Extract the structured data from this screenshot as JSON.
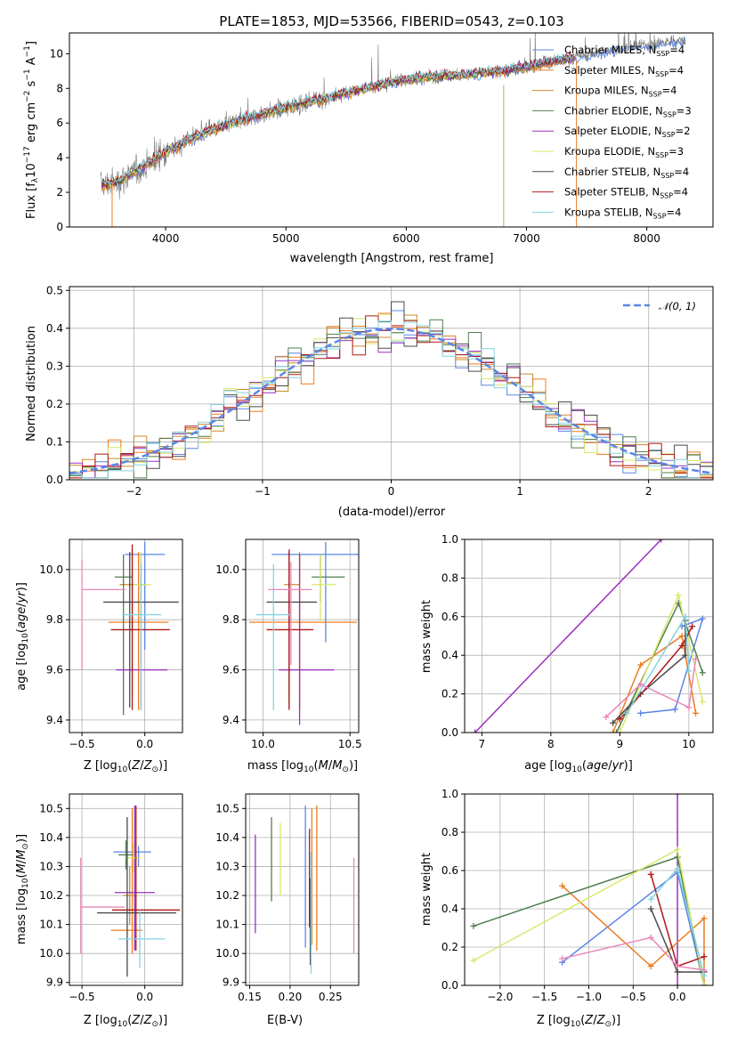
{
  "figure": {
    "title": "PLATE=1853, MJD=53566, FIBERID=0543, z=0.103"
  },
  "colors": {
    "series": [
      "#5b86e5",
      "#ec7c1e",
      "#cc8a2e",
      "#4f7f4f",
      "#9b30c0",
      "#d9e86a",
      "#4a4a4a",
      "#b01818",
      "#84d2e0"
    ],
    "spectrum": "#7a7a7a",
    "pink": "#e887b9",
    "gaussian": "#5b86e5"
  },
  "chart_data": [
    {
      "id": "spectrum",
      "type": "line",
      "xlabel": "wavelength [Angstrom, rest frame]",
      "ylabel": "Flux [f_λ10^-17 erg cm^-2 s^-1 A^-1]",
      "xlim": [
        3200,
        8550
      ],
      "ylim": [
        0,
        11.2
      ],
      "xticks": [
        4000,
        5000,
        6000,
        7000,
        8000
      ],
      "yticks": [
        0,
        2,
        4,
        6,
        8,
        10
      ],
      "legend_position": "right",
      "legend": [
        "Chabrier MILES, N_SSP=4",
        "Salpeter MILES, N_SSP=4",
        "Kroupa MILES, N_SSP=4",
        "Chabrier ELODIE, N_SSP=3",
        "Salpeter ELODIE, N_SSP=2",
        "Kroupa ELODIE, N_SSP=3",
        "Chabrier STELIB, N_SSP=4",
        "Salpeter STELIB, N_SSP=4",
        "Kroupa STELIB, N_SSP=4"
      ],
      "legend_base": [
        "Chabrier MILES, N",
        "Salpeter MILES, N",
        "Kroupa MILES, N",
        "Chabrier ELODIE, N",
        "Salpeter ELODIE, N",
        "Kroupa ELODIE, N",
        "Chabrier STELIB, N",
        "Salpeter STELIB, N",
        "Kroupa STELIB, N"
      ],
      "legend_n": [
        "=4",
        "=4",
        "=4",
        "=3",
        "=2",
        "=3",
        "=4",
        "=4",
        "=4"
      ],
      "legend_sub": "SSP",
      "model_continuum": {
        "x": [
          3450,
          3600,
          3700,
          3800,
          4000,
          4200,
          4500,
          4800,
          5000,
          5300,
          5600,
          5900,
          6200,
          6500,
          6800,
          7100,
          7400,
          7700,
          8000,
          8300
        ],
        "y": [
          2.4,
          2.6,
          3.0,
          3.4,
          4.3,
          5.1,
          5.9,
          6.5,
          6.9,
          7.4,
          7.9,
          8.4,
          8.7,
          8.8,
          9.0,
          9.4,
          9.8,
          10.2,
          10.5,
          10.8
        ]
      }
    },
    {
      "id": "residuals",
      "type": "bar",
      "xlabel": "(data-model)/error",
      "ylabel": "Normed distribution",
      "xlim": [
        -2.5,
        2.5
      ],
      "ylim": [
        0,
        0.51
      ],
      "xticks": [
        -2,
        -1,
        0,
        1,
        2
      ],
      "yticks": [
        0.0,
        0.1,
        0.2,
        0.3,
        0.4,
        0.5
      ],
      "grid": true,
      "legend_position": "top-right",
      "legend": [
        "𝒩(0, 1)"
      ],
      "bins": 50,
      "bin_range": [
        -2.5,
        2.5
      ]
    },
    {
      "id": "age_Z",
      "type": "scatter",
      "xlabel": "Z [log10(Z/Z⊙)]",
      "ylabel": "age  [log10(age/yr)]",
      "xlim": [
        -0.6,
        0.3
      ],
      "ylim": [
        9.35,
        10.12
      ],
      "xticks": [
        -0.5,
        0.0
      ],
      "yticks": [
        9.4,
        9.6,
        9.8,
        10.0
      ],
      "grid": true,
      "points": [
        {
          "x": 0.0,
          "y": 10.06,
          "xerr": [
            0.16,
            0.16
          ],
          "yerr": [
            0.38,
            0.05
          ]
        },
        {
          "x": -0.05,
          "y": 9.79,
          "xerr": [
            0.24,
            0.24
          ],
          "yerr": [
            0.35,
            0.28
          ]
        },
        {
          "x": -0.1,
          "y": 9.94,
          "xerr": [
            0.1,
            0.12
          ],
          "yerr": [
            0.45,
            0.14
          ]
        },
        {
          "x": -0.17,
          "y": 9.97,
          "xerr": [
            0.07,
            0.07
          ],
          "yerr": [
            0.55,
            0.09
          ]
        },
        {
          "x": -0.03,
          "y": 9.6,
          "xerr": [
            0.2,
            0.21
          ],
          "yerr": [
            0.16,
            0.46
          ]
        },
        {
          "x": -0.03,
          "y": 9.94,
          "xerr": [
            0.06,
            0.08
          ],
          "yerr": [
            0.22,
            0.13
          ]
        },
        {
          "x": -0.12,
          "y": 9.87,
          "xerr": [
            0.21,
            0.39
          ],
          "yerr": [
            0.42,
            0.2
          ]
        },
        {
          "x": -0.1,
          "y": 9.76,
          "xerr": [
            0.17,
            0.3
          ],
          "yerr": [
            0.32,
            0.34
          ]
        },
        {
          "x": -0.03,
          "y": 9.82,
          "xerr": [
            0.15,
            0.16
          ],
          "yerr": [
            0.38,
            0.2
          ]
        },
        {
          "x": -0.5,
          "y": 9.92,
          "xerr": [
            0.0,
            0.35
          ],
          "yerr": [
            0.32,
            0.12
          ]
        }
      ]
    },
    {
      "id": "age_mass",
      "type": "scatter",
      "xlabel": "mass [log10(M/M⊙)]",
      "ylabel": "",
      "xlim": [
        9.9,
        10.55
      ],
      "ylim": [
        9.35,
        10.12
      ],
      "xticks": [
        10.0,
        10.5
      ],
      "yticks": [
        9.4,
        9.6,
        9.8,
        10.0
      ],
      "grid": true,
      "points": [
        {
          "x": 10.36,
          "y": 10.06,
          "xerr": [
            0.31,
            0.2
          ],
          "yerr": [
            0.35,
            0.05
          ]
        },
        {
          "x": 10.21,
          "y": 9.79,
          "xerr": [
            0.29,
            0.33
          ],
          "yerr": [
            0.35,
            0.28
          ]
        },
        {
          "x": 10.15,
          "y": 9.94,
          "xerr": [
            0.03,
            0.06
          ],
          "yerr": [
            0.45,
            0.12
          ]
        },
        {
          "x": 10.33,
          "y": 9.97,
          "xerr": [
            0.05,
            0.14
          ],
          "yerr": [
            0.1,
            0.09
          ]
        },
        {
          "x": 10.21,
          "y": 9.6,
          "xerr": [
            0.12,
            0.2
          ],
          "yerr": [
            0.22,
            0.46
          ]
        },
        {
          "x": 10.33,
          "y": 9.94,
          "xerr": [
            0.05,
            0.09
          ],
          "yerr": [
            0.15,
            0.12
          ]
        },
        {
          "x": 10.15,
          "y": 9.87,
          "xerr": [
            0.13,
            0.16
          ],
          "yerr": [
            0.42,
            0.2
          ]
        },
        {
          "x": 10.15,
          "y": 9.76,
          "xerr": [
            0.13,
            0.14
          ],
          "yerr": [
            0.32,
            0.32
          ]
        },
        {
          "x": 10.06,
          "y": 9.82,
          "xerr": [
            0.1,
            0.1
          ],
          "yerr": [
            0.38,
            0.2
          ]
        },
        {
          "x": 10.16,
          "y": 9.92,
          "xerr": [
            0.13,
            0.12
          ],
          "yerr": [
            0.3,
            0.11
          ]
        }
      ]
    },
    {
      "id": "weight_age",
      "type": "line",
      "xlabel": "age  [log10(age/yr)]",
      "ylabel": "mass weight",
      "xlim": [
        6.75,
        10.35
      ],
      "ylim": [
        0,
        1.0
      ],
      "xticks": [
        7,
        8,
        9,
        10
      ],
      "yticks": [
        0.0,
        0.2,
        0.4,
        0.6,
        0.8,
        1.0
      ],
      "grid": true
    },
    {
      "id": "mass_Z",
      "type": "scatter",
      "xlabel": "Z [log10(Z/Z⊙)]",
      "ylabel": "mass [log10(M/M⊙)]",
      "xlim": [
        -0.6,
        0.3
      ],
      "ylim": [
        9.89,
        10.55
      ],
      "xticks": [
        -0.5,
        0.0
      ],
      "yticks": [
        9.9,
        10.0,
        10.1,
        10.2,
        10.3,
        10.4,
        10.5
      ],
      "grid": true,
      "points": [
        {
          "x": -0.05,
          "y": 10.35,
          "xerr": [
            0.2,
            0.1
          ],
          "yerr": [
            0.05,
            0.02
          ]
        },
        {
          "x": -0.1,
          "y": 10.08,
          "xerr": [
            0.17,
            0.08
          ],
          "yerr": [
            0.08,
            0.42
          ]
        },
        {
          "x": -0.12,
          "y": 10.2,
          "xerr": [
            0.05,
            0.04
          ],
          "yerr": [
            0.1,
            0.1
          ]
        },
        {
          "x": -0.15,
          "y": 10.34,
          "xerr": [
            0.06,
            0.06
          ],
          "yerr": [
            0.05,
            0.05
          ]
        },
        {
          "x": -0.08,
          "y": 10.21,
          "xerr": [
            0.16,
            0.16
          ],
          "yerr": [
            0.2,
            0.3
          ]
        },
        {
          "x": -0.09,
          "y": 10.33,
          "xerr": [
            0.06,
            0.06
          ],
          "yerr": [
            0.05,
            0.05
          ]
        },
        {
          "x": -0.14,
          "y": 10.14,
          "xerr": [
            0.24,
            0.39
          ],
          "yerr": [
            0.22,
            0.33
          ]
        },
        {
          "x": -0.07,
          "y": 10.15,
          "xerr": [
            0.19,
            0.35
          ],
          "yerr": [
            0.14,
            0.36
          ]
        },
        {
          "x": -0.04,
          "y": 10.05,
          "xerr": [
            0.17,
            0.2
          ],
          "yerr": [
            0.1,
            0.1
          ]
        },
        {
          "x": -0.51,
          "y": 10.16,
          "xerr": [
            0.0,
            0.35
          ],
          "yerr": [
            0.16,
            0.17
          ]
        }
      ]
    },
    {
      "id": "mass_ebv",
      "type": "scatter",
      "xlabel": "E(B-V)",
      "ylabel": "",
      "xlim": [
        0.145,
        0.285
      ],
      "ylim": [
        9.89,
        10.55
      ],
      "xticks": [
        0.15,
        0.2,
        0.25
      ],
      "yticks": [
        9.9,
        10.0,
        10.1,
        10.2,
        10.3,
        10.4,
        10.5
      ],
      "grid": true,
      "points": [
        {
          "x": 0.219,
          "y": 10.22,
          "yerr": [
            0.2,
            0.29
          ]
        },
        {
          "x": 0.233,
          "y": 10.23,
          "yerr": [
            0.22,
            0.28
          ]
        },
        {
          "x": 0.227,
          "y": 10.23,
          "yerr": [
            0.2,
            0.27
          ]
        },
        {
          "x": 0.177,
          "y": 10.33,
          "yerr": [
            0.15,
            0.14
          ]
        },
        {
          "x": 0.157,
          "y": 10.24,
          "yerr": [
            0.17,
            0.17
          ]
        },
        {
          "x": 0.188,
          "y": 10.32,
          "yerr": [
            0.12,
            0.13
          ]
        },
        {
          "x": 0.225,
          "y": 10.13,
          "yerr": [
            0.17,
            0.13
          ]
        },
        {
          "x": 0.224,
          "y": 10.26,
          "yerr": [
            0.17,
            0.17
          ]
        },
        {
          "x": 0.226,
          "y": 10.15,
          "yerr": [
            0.22,
            0.2
          ]
        },
        {
          "x": 0.279,
          "y": 10.17,
          "yerr": [
            0.17,
            0.16
          ]
        }
      ]
    },
    {
      "id": "weight_Z",
      "type": "line",
      "xlabel": "Z [log10(Z/Z⊙)]",
      "ylabel": "mass weight",
      "xlim": [
        -2.4,
        0.4
      ],
      "ylim": [
        0,
        1.0
      ],
      "xticks": [
        -2.0,
        -1.5,
        -1.0,
        -0.5,
        0.0
      ],
      "yticks": [
        0.0,
        0.2,
        0.4,
        0.6,
        0.8,
        1.0
      ],
      "grid": true
    }
  ]
}
